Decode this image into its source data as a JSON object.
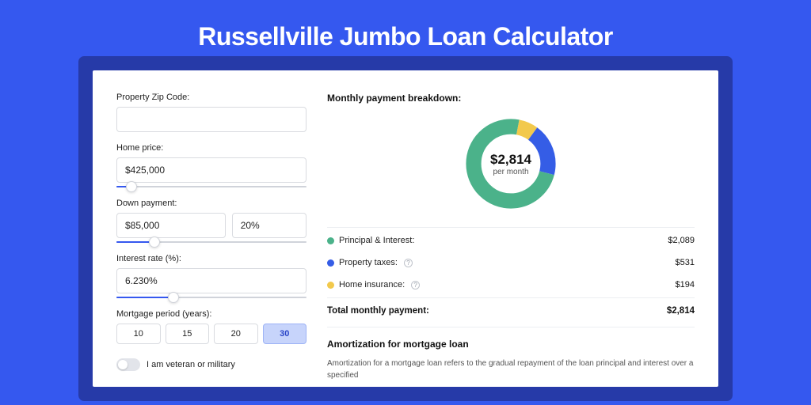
{
  "page": {
    "title": "Russellville Jumbo Loan Calculator",
    "background_color": "#3558ef",
    "panel_shadow_color": "#263aa8"
  },
  "form": {
    "zip": {
      "label": "Property Zip Code:",
      "value": ""
    },
    "home_price": {
      "label": "Home price:",
      "value": "$425,000",
      "slider": {
        "fill_pct": 8,
        "thumb_pct": 8
      }
    },
    "down_payment": {
      "label": "Down payment:",
      "amount": "$85,000",
      "percent": "20%",
      "slider": {
        "fill_pct": 20,
        "thumb_pct": 20
      }
    },
    "interest_rate": {
      "label": "Interest rate (%):",
      "value": "6.230%",
      "slider": {
        "fill_pct": 30,
        "thumb_pct": 30
      }
    },
    "mortgage_period": {
      "label": "Mortgage period (years):",
      "options": [
        "10",
        "15",
        "20",
        "30"
      ],
      "active_index": 3
    },
    "veteran_toggle": {
      "label": "I am veteran or military",
      "checked": false
    }
  },
  "breakdown": {
    "heading": "Monthly payment breakdown:",
    "center_amount": "$2,814",
    "center_sub": "per month",
    "colors": {
      "principal": "#4bb28a",
      "taxes": "#355de6",
      "insurance": "#f2c94c",
      "track": "#e9ebef"
    },
    "donut_slices": [
      {
        "key": "insurance",
        "pct": 7,
        "color": "#f2c94c"
      },
      {
        "key": "taxes",
        "pct": 19,
        "color": "#355de6"
      },
      {
        "key": "principal",
        "pct": 74,
        "color": "#4bb28a"
      }
    ],
    "items": [
      {
        "label": "Principal & Interest:",
        "value": "$2,089",
        "dot": "#4bb28a",
        "info": false
      },
      {
        "label": "Property taxes:",
        "value": "$531",
        "dot": "#355de6",
        "info": true
      },
      {
        "label": "Home insurance:",
        "value": "$194",
        "dot": "#f2c94c",
        "info": true
      }
    ],
    "total": {
      "label": "Total monthly payment:",
      "value": "$2,814"
    }
  },
  "amortization": {
    "heading": "Amortization for mortgage loan",
    "text": "Amortization for a mortgage loan refers to the gradual repayment of the loan principal and interest over a specified"
  }
}
